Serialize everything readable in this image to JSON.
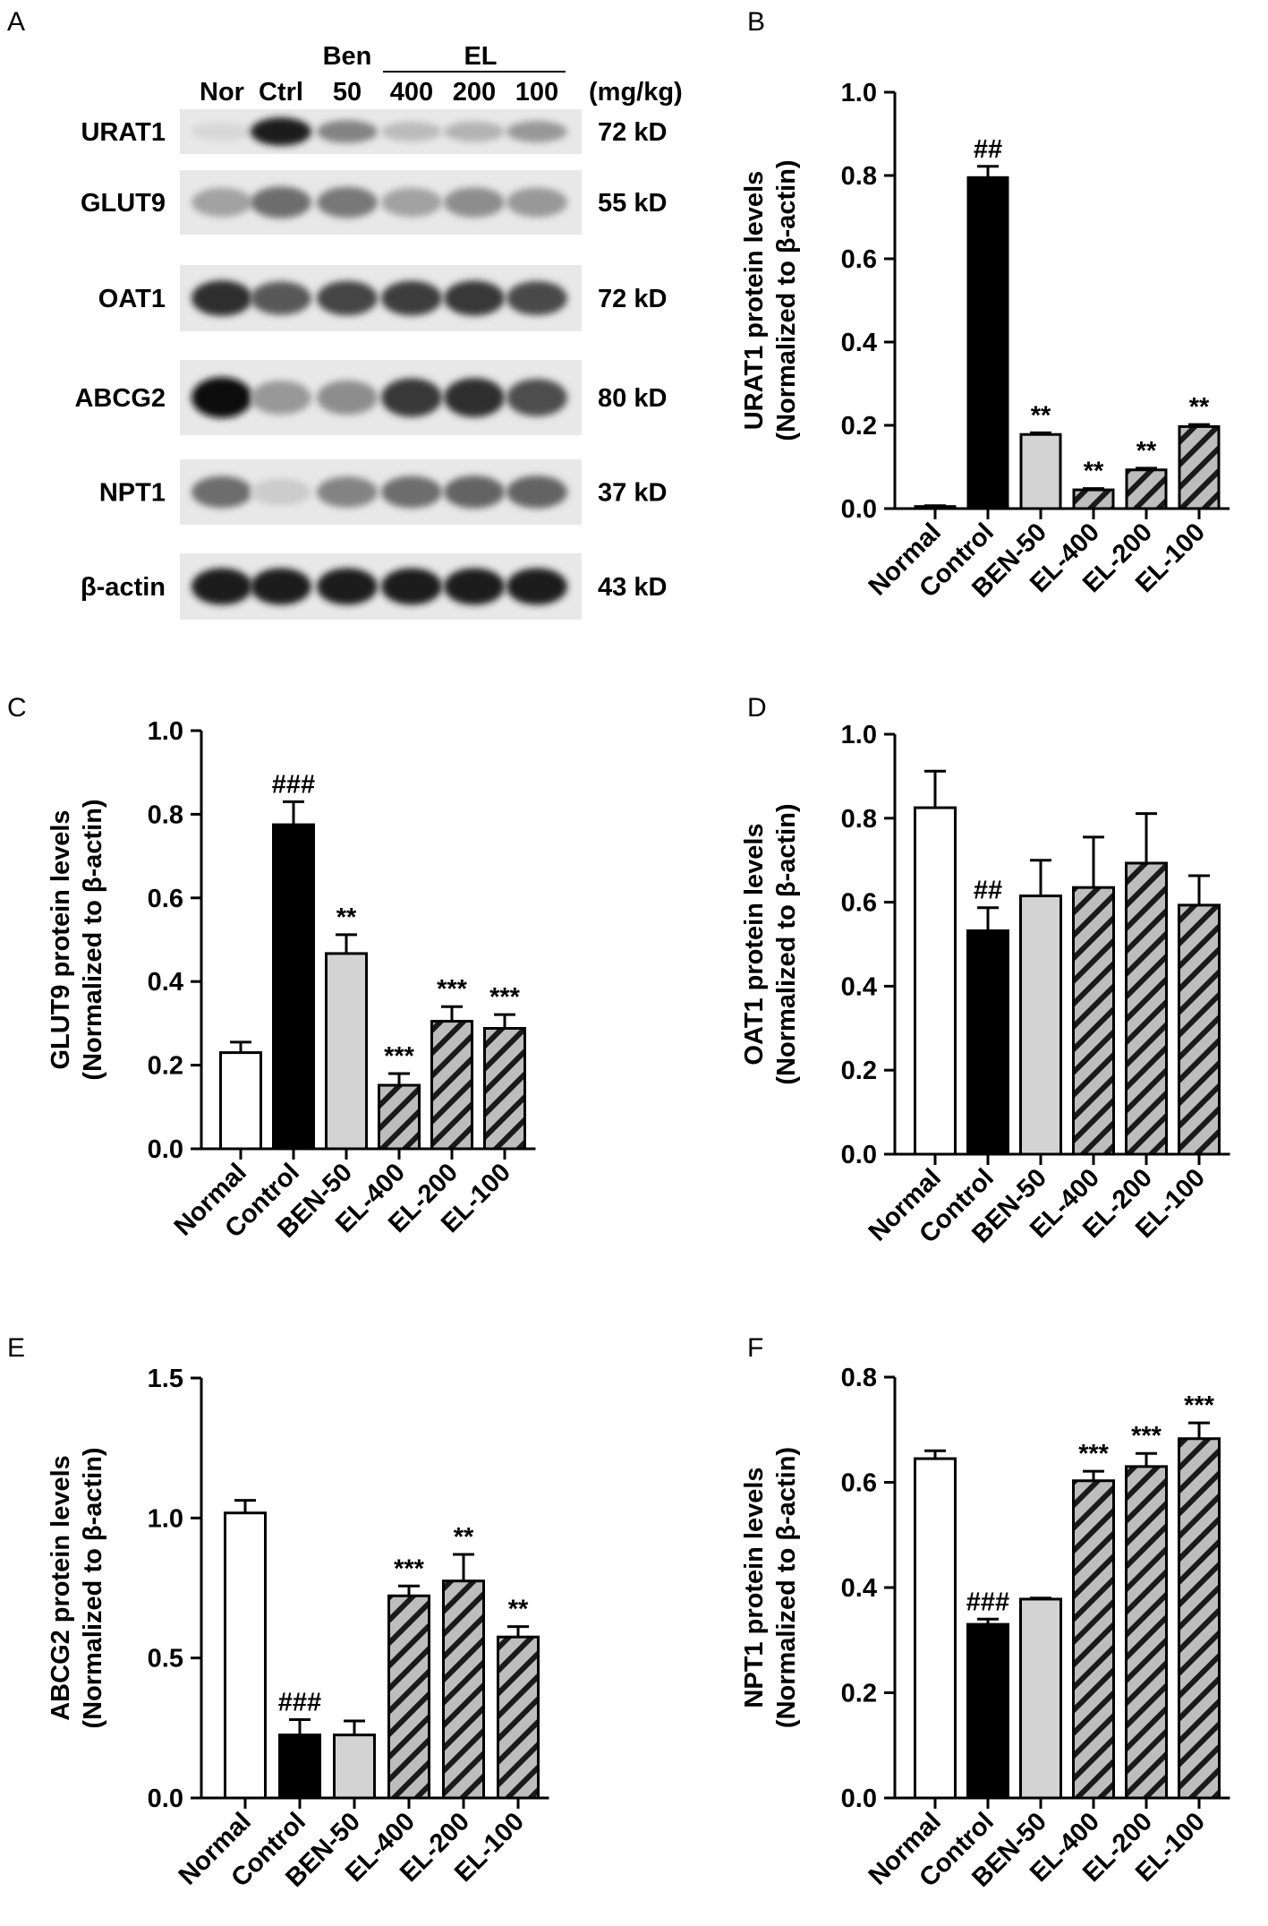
{
  "panel_letters": [
    "A",
    "B",
    "C",
    "D",
    "E",
    "F"
  ],
  "blot": {
    "lane_labels": [
      "Nor",
      "Ctrl",
      "50",
      "400",
      "200",
      "100"
    ],
    "group_labels": {
      "ben": "Ben",
      "el": "EL"
    },
    "unit_label": "(mg/kg)",
    "rows": [
      {
        "name": "URAT1",
        "size": "72 kD",
        "intensity": [
          0.05,
          0.95,
          0.45,
          0.18,
          0.22,
          0.35
        ]
      },
      {
        "name": "GLUT9",
        "size": "55 kD",
        "intensity": [
          0.3,
          0.55,
          0.5,
          0.3,
          0.4,
          0.35
        ]
      },
      {
        "name": "OAT1",
        "size": "72 kD",
        "intensity": [
          0.85,
          0.65,
          0.75,
          0.78,
          0.8,
          0.72
        ]
      },
      {
        "name": "ABCG2",
        "size": "80 kD",
        "intensity": [
          1.0,
          0.35,
          0.4,
          0.8,
          0.85,
          0.7
        ]
      },
      {
        "name": "NPT1",
        "size": "37 kD",
        "intensity": [
          0.55,
          0.1,
          0.45,
          0.55,
          0.6,
          0.6
        ]
      },
      {
        "name": "β-actin",
        "size": "43 kD",
        "intensity": [
          0.95,
          0.95,
          0.95,
          0.95,
          0.95,
          0.95
        ]
      }
    ]
  },
  "chart_data": [
    {
      "panel": "B",
      "type": "bar",
      "categories": [
        "Normal",
        "Control",
        "BEN-50",
        "EL-400",
        "EL-200",
        "EL-100"
      ],
      "values": [
        0.005,
        0.795,
        0.178,
        0.045,
        0.093,
        0.197
      ],
      "errors": [
        0.002,
        0.027,
        0.004,
        0.003,
        0.004,
        0.005
      ],
      "annotations": [
        "",
        "##",
        "**",
        "**",
        "**",
        "**"
      ],
      "ylabel": "URAT1 protein levels",
      "ylabel2": "(Normalized to β-actin)",
      "ylim": [
        0,
        1.0
      ],
      "yticks": [
        "0.0",
        "0.2",
        "0.4",
        "0.6",
        "0.8",
        "1.0"
      ]
    },
    {
      "panel": "C",
      "type": "bar",
      "categories": [
        "Normal",
        "Control",
        "BEN-50",
        "EL-400",
        "EL-200",
        "EL-100"
      ],
      "values": [
        0.23,
        0.775,
        0.467,
        0.152,
        0.305,
        0.288
      ],
      "errors": [
        0.025,
        0.055,
        0.045,
        0.028,
        0.035,
        0.033
      ],
      "annotations": [
        "",
        "###",
        "**",
        "***",
        "***",
        "***"
      ],
      "ylabel": "GLUT9 protein levels",
      "ylabel2": "(Normalized to β-actin)",
      "ylim": [
        0,
        1.0
      ],
      "yticks": [
        "0.0",
        "0.2",
        "0.4",
        "0.6",
        "0.8",
        "1.0"
      ]
    },
    {
      "panel": "D",
      "type": "bar",
      "categories": [
        "Normal",
        "Control",
        "BEN-50",
        "EL-400",
        "EL-200",
        "EL-100"
      ],
      "values": [
        0.825,
        0.532,
        0.615,
        0.635,
        0.693,
        0.593
      ],
      "errors": [
        0.087,
        0.055,
        0.085,
        0.12,
        0.118,
        0.07
      ],
      "annotations": [
        "",
        "##",
        "",
        "",
        "",
        ""
      ],
      "ylabel": "OAT1 protein levels",
      "ylabel2": "(Normalized to β-actin)",
      "ylim": [
        0,
        1.0
      ],
      "yticks": [
        "0.0",
        "0.2",
        "0.4",
        "0.6",
        "0.8",
        "1.0"
      ]
    },
    {
      "panel": "E",
      "type": "bar",
      "categories": [
        "Normal",
        "Control",
        "BEN-50",
        "EL-400",
        "EL-200",
        "EL-100"
      ],
      "values": [
        1.018,
        0.225,
        0.225,
        0.722,
        0.775,
        0.575
      ],
      "errors": [
        0.045,
        0.055,
        0.05,
        0.035,
        0.095,
        0.037
      ],
      "annotations": [
        "",
        "###",
        "",
        "***",
        "**",
        "**"
      ],
      "ylabel": "ABCG2 protein levels",
      "ylabel2": "(Normalized to β-actin)",
      "ylim": [
        0,
        1.5
      ],
      "yticks": [
        "0.0",
        "0.5",
        "1.0",
        "1.5"
      ]
    },
    {
      "panel": "F",
      "type": "bar",
      "categories": [
        "Normal",
        "Control",
        "BEN-50",
        "EL-400",
        "EL-200",
        "EL-100"
      ],
      "values": [
        0.645,
        0.33,
        0.378,
        0.603,
        0.63,
        0.683
      ],
      "errors": [
        0.015,
        0.01,
        0.002,
        0.018,
        0.025,
        0.03
      ],
      "annotations": [
        "",
        "###",
        "",
        "***",
        "***",
        "***"
      ],
      "ylabel": "NPT1 protein levels",
      "ylabel2": "(Normalized to β-actin)",
      "ylim": [
        0,
        0.8
      ],
      "yticks": [
        "0.0",
        "0.2",
        "0.4",
        "0.6",
        "0.8"
      ]
    }
  ],
  "colors": {
    "Normal": "#ffffff",
    "Control": "#000000",
    "BEN-50": "#d3d3d3",
    "EL": "#c0c0c0",
    "axis": "#000000"
  }
}
